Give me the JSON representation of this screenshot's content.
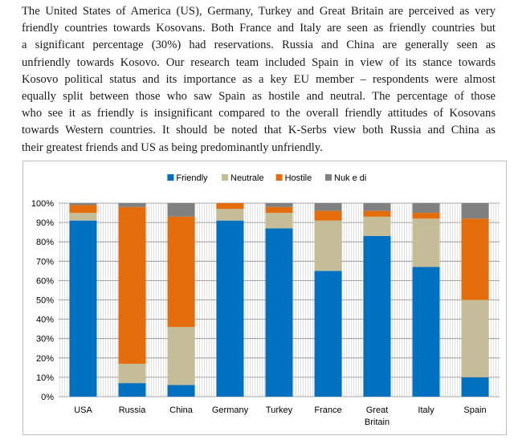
{
  "paragraph_lines": [
    "The United States of America (US), Germany, Turkey and Great Britain are perceived as very",
    "friendly countries towards Kosovans.  Both France and Italy are seen as friendly countries but",
    "a significant percentage (30%) had reservations.  Russia and China are generally seen as",
    "unfriendly towards Kosovo.  Our research team included Spain in view of its stance towards",
    "Kosovo political status and its importance as a key EU member – respondents were almost",
    "equally split between those who saw Spain as hostile and neutral. The percentage of those",
    "who see it as friendly is insignificant compared to the overall friendly attitudes of Kosovans",
    "towards Western countries.  It should be noted that K-Serbs view both Russia and China as",
    "their greatest friends and US as being predominantly unfriendly."
  ],
  "chart_data": {
    "type": "bar",
    "stacked": true,
    "categories": [
      "USA",
      "Russia",
      "China",
      "Germany",
      "Turkey",
      "France",
      "Great Britain",
      "Italy",
      "Spain"
    ],
    "category_label_lines": [
      [
        "USA"
      ],
      [
        "Russia"
      ],
      [
        "China"
      ],
      [
        "Germany"
      ],
      [
        "Turkey"
      ],
      [
        "France"
      ],
      [
        "Great",
        "Britain"
      ],
      [
        "Italy"
      ],
      [
        "Spain"
      ]
    ],
    "series": [
      {
        "name": "Friendly",
        "color": "#0070C0",
        "values": [
          91,
          7,
          6,
          91,
          87,
          65,
          83,
          67,
          10
        ]
      },
      {
        "name": "Neutrale",
        "color": "#C4BD97",
        "values": [
          4,
          10,
          30,
          6,
          8,
          26,
          10,
          25,
          40
        ]
      },
      {
        "name": "Hostile",
        "color": "#E46C0A",
        "values": [
          4,
          81,
          57,
          3,
          3,
          5,
          3,
          3,
          42
        ]
      },
      {
        "name": "Nuk e di",
        "color": "#808080",
        "values": [
          1,
          2,
          7,
          0,
          2,
          4,
          4,
          5,
          8
        ]
      }
    ],
    "ylim": [
      0,
      100
    ],
    "yticks": [
      0,
      10,
      20,
      30,
      40,
      50,
      60,
      70,
      80,
      90,
      100
    ],
    "ytick_labels": [
      "0%",
      "10%",
      "20%",
      "30%",
      "40%",
      "50%",
      "60%",
      "70%",
      "80%",
      "90%",
      "100%"
    ],
    "grid": true,
    "legend_position": "top",
    "title": "",
    "xlabel": "",
    "ylabel": ""
  }
}
